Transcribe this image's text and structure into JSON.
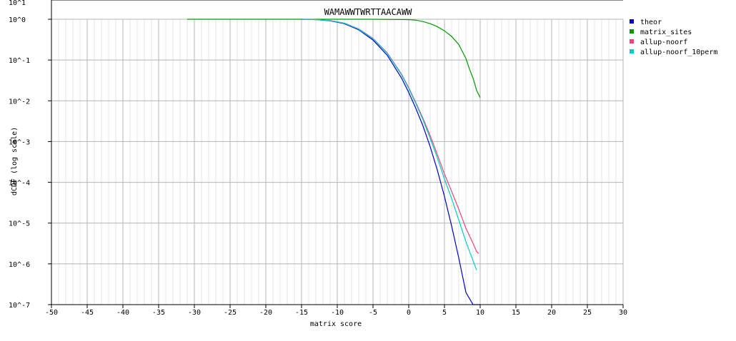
{
  "chart_data": {
    "type": "line",
    "title": "WAMAWWTWRTTAACAWW",
    "xlabel": "matrix score",
    "ylabel": "dCDF (log scale)",
    "xlim": [
      -50,
      30
    ],
    "ylim": [
      1e-07,
      10
    ],
    "y_scale": "log",
    "grid": true,
    "legend_position": "top-right",
    "x_ticks": [
      -50,
      -45,
      -40,
      -35,
      -30,
      -25,
      -20,
      -15,
      -10,
      -5,
      0,
      5,
      10,
      15,
      20,
      25,
      30
    ],
    "x_tick_labels": [
      "-50",
      "-45",
      "-40",
      "-35",
      "-30",
      "-25",
      "-20",
      "-15",
      "-10",
      "-5",
      "0",
      "5",
      "10",
      "15",
      "20",
      "25",
      "30"
    ],
    "y_ticks": [
      1,
      0.1,
      0.01,
      0.001,
      0.0001,
      1e-05,
      1e-06,
      1e-07
    ],
    "y_tick_labels": [
      "10^0",
      "10^-1",
      "10^-2",
      "10^-3",
      "10^-4",
      "10^-5",
      "10^-6",
      "10^-7"
    ],
    "y_top_label": "10^1",
    "series": [
      {
        "name": "theor",
        "color": "#0000cc",
        "x": [
          -15,
          -13,
          -11,
          -9,
          -7,
          -5,
          -3,
          -1,
          0,
          1,
          2,
          3,
          4,
          5,
          6,
          7,
          8,
          9,
          9.5,
          10
        ],
        "y": [
          1,
          0.98,
          0.92,
          0.78,
          0.55,
          0.31,
          0.13,
          0.036,
          0.016,
          0.0065,
          0.0024,
          0.00075,
          0.0002,
          4.5e-05,
          8.5e-06,
          1.4e-06,
          2e-07,
          2.5e-08,
          9e-09,
          1e-07
        ]
      },
      {
        "name": "matrix_sites",
        "color": "#009900",
        "x": [
          -31,
          -5,
          0,
          1,
          2,
          3,
          4,
          5,
          6,
          7,
          8,
          8.5,
          9,
          9.5,
          10
        ],
        "y": [
          1,
          1,
          0.98,
          0.95,
          0.88,
          0.78,
          0.66,
          0.52,
          0.38,
          0.24,
          0.11,
          0.06,
          0.036,
          0.018,
          0.012
        ]
      },
      {
        "name": "allup-noorf",
        "color": "#ee4477",
        "x": [
          -15,
          -13,
          -11,
          -9,
          -7,
          -5,
          -3,
          -1,
          0,
          1,
          2,
          3,
          4,
          5,
          6,
          7,
          8,
          9,
          9.5,
          9.8
        ],
        "y": [
          1,
          0.98,
          0.93,
          0.8,
          0.58,
          0.34,
          0.15,
          0.045,
          0.021,
          0.009,
          0.0037,
          0.0014,
          0.00048,
          0.00016,
          6e-05,
          2.2e-05,
          7.5e-06,
          3.2e-06,
          2e-06,
          1.8e-06
        ]
      },
      {
        "name": "allup-noorf_10perm",
        "color": "#00cccc",
        "x": [
          -15,
          -13,
          -11,
          -9,
          -7,
          -5,
          -3,
          -1,
          0,
          1,
          2,
          3,
          4,
          5,
          6,
          7,
          8,
          9,
          9.5
        ],
        "y": [
          1,
          0.98,
          0.93,
          0.8,
          0.57,
          0.33,
          0.145,
          0.043,
          0.02,
          0.0085,
          0.0034,
          0.0012,
          0.0004,
          0.00012,
          4e-05,
          1.2e-05,
          3.5e-06,
          1.2e-06,
          7e-07
        ]
      }
    ]
  }
}
